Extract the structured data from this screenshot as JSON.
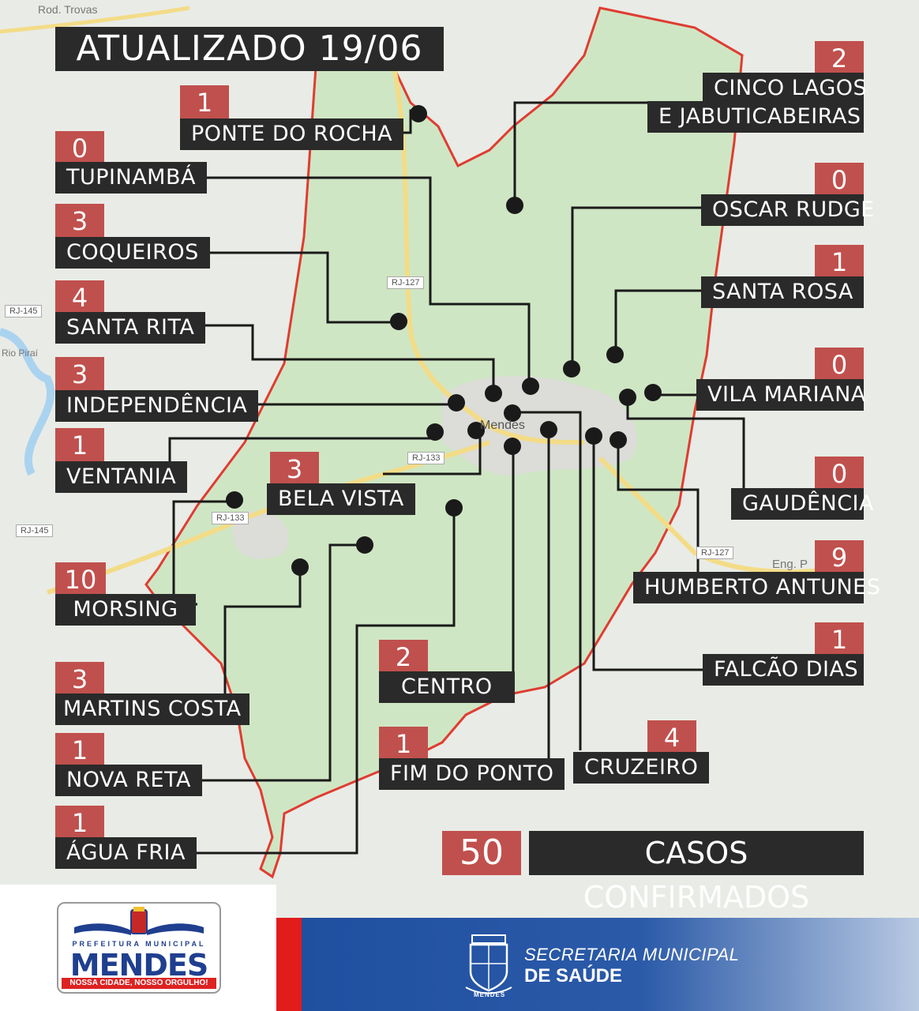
{
  "title": "ATUALIZADO 19/06",
  "map": {
    "city_label": "Mendes",
    "roads": [
      "RJ-127",
      "RJ-145",
      "RJ-133",
      "RJ-133",
      "RJ-145",
      "RJ-127"
    ],
    "road_top": "Rod. Trovas",
    "place_right": "Eng. P",
    "place_left": "Rio Piraí"
  },
  "neighborhoods": [
    {
      "name": "PONTE DO ROCHA",
      "count": "1"
    },
    {
      "name": "TUPINAMBÁ",
      "count": "0"
    },
    {
      "name": "COQUEIROS",
      "count": "3"
    },
    {
      "name": "SANTA RITA",
      "count": "4"
    },
    {
      "name": "INDEPENDÊNCIA",
      "count": "3"
    },
    {
      "name": "VENTANIA",
      "count": "1"
    },
    {
      "name": "BELA VISTA",
      "count": "3"
    },
    {
      "name": "MORSING",
      "count": "10"
    },
    {
      "name": "MARTINS COSTA",
      "count": "3"
    },
    {
      "name": "NOVA RETA",
      "count": "1"
    },
    {
      "name": "ÁGUA FRIA",
      "count": "1"
    },
    {
      "name": "CENTRO",
      "count": "2"
    },
    {
      "name": "FIM DO PONTO",
      "count": "1"
    },
    {
      "name": "CRUZEIRO",
      "count": "4"
    },
    {
      "name": "CINCO LAGOS",
      "name2": "E JABUTICABEIRAS",
      "count": "2"
    },
    {
      "name": "OSCAR RUDGE",
      "count": "0"
    },
    {
      "name": "SANTA ROSA",
      "count": "1"
    },
    {
      "name": "VILA MARIANA",
      "count": "0"
    },
    {
      "name": "GAUDÊNCIA",
      "count": "0"
    },
    {
      "name": "HUMBERTO ANTUNES",
      "count": "9"
    },
    {
      "name": "FALCÃO DIAS",
      "count": "1"
    }
  ],
  "total": {
    "value": "50",
    "label": "CASOS CONFIRMADOS"
  },
  "footer": {
    "prefeitura": "PREFEITURA MUNICIPAL",
    "city": "MENDES",
    "slogan": "NOSSA CIDADE, NOSSO ORGULHO!",
    "secretaria_line1": "SECRETARIA MUNICIPAL",
    "secretaria_line2": "DE SAÚDE",
    "seal_text": "MENDES"
  },
  "colors": {
    "count_bg": "#c0504d",
    "label_bg": "#2a2a2a",
    "region_fill": "#cfe6c4",
    "border": "#e03c31",
    "footer_blue": "#1f4fa0",
    "footer_red": "#e21b1b"
  }
}
